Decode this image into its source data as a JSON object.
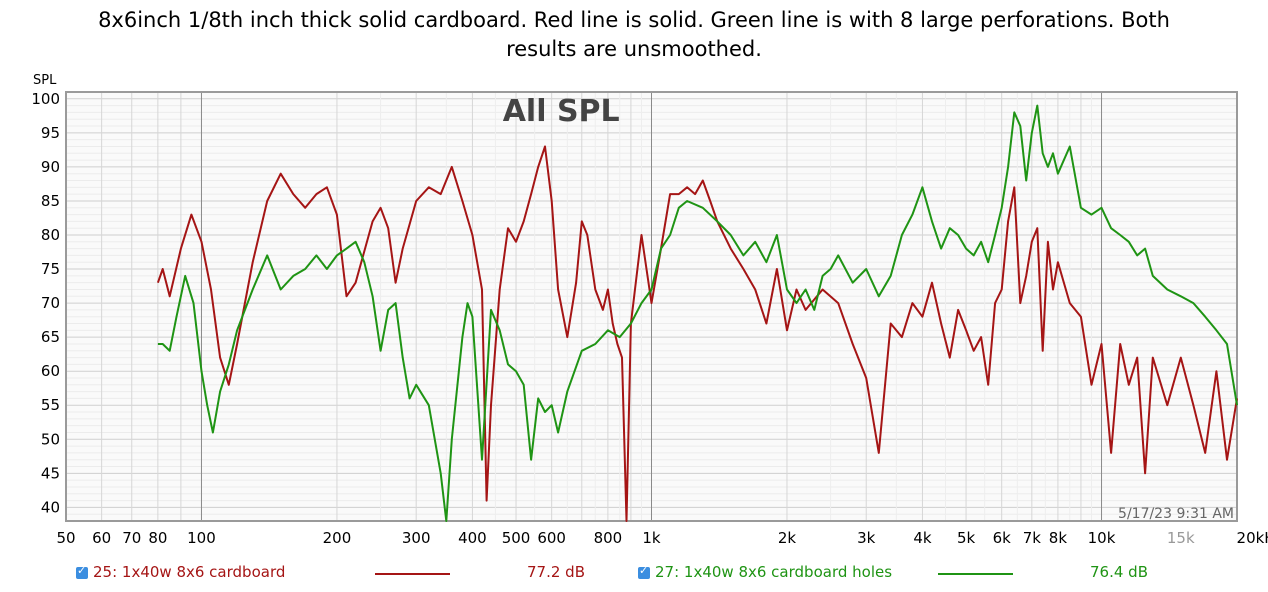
{
  "title_lines": [
    "8x6inch 1/8th inch thick solid cardboard. Red line is solid. Green line is with 8 large perforations. Both",
    "results are unsmoothed."
  ],
  "chart_data": {
    "type": "line",
    "title": "All SPL",
    "ylabel": "SPL",
    "timestamp": "5/17/23 9:31 AM",
    "xscale": "log",
    "xlim": [
      50,
      20000
    ],
    "ylim": [
      38,
      101
    ],
    "grid": true,
    "x_ticks": [
      {
        "v": 50,
        "label": "50"
      },
      {
        "v": 60,
        "label": "60"
      },
      {
        "v": 70,
        "label": "70"
      },
      {
        "v": 80,
        "label": "80"
      },
      {
        "v": 100,
        "label": "100"
      },
      {
        "v": 200,
        "label": "200"
      },
      {
        "v": 300,
        "label": "300"
      },
      {
        "v": 400,
        "label": "400"
      },
      {
        "v": 500,
        "label": "500"
      },
      {
        "v": 600,
        "label": "600"
      },
      {
        "v": 800,
        "label": "800"
      },
      {
        "v": 1000,
        "label": "1k"
      },
      {
        "v": 2000,
        "label": "2k"
      },
      {
        "v": 3000,
        "label": "3k"
      },
      {
        "v": 4000,
        "label": "4k"
      },
      {
        "v": 5000,
        "label": "5k"
      },
      {
        "v": 6000,
        "label": "6k"
      },
      {
        "v": 7000,
        "label": "7k"
      },
      {
        "v": 8000,
        "label": "8k"
      },
      {
        "v": 10000,
        "label": "10k"
      },
      {
        "v": 15000,
        "label": "15k"
      },
      {
        "v": 20000,
        "label": "20kHz"
      }
    ],
    "y_ticks": [
      40,
      45,
      50,
      55,
      60,
      65,
      70,
      75,
      80,
      85,
      90,
      95,
      100
    ],
    "series": [
      {
        "name": "25: 1x40w 8x6 cardboard",
        "color": "#a51515",
        "value_label": "77.2 dB",
        "points": [
          [
            80,
            73
          ],
          [
            82,
            75
          ],
          [
            85,
            71
          ],
          [
            90,
            78
          ],
          [
            95,
            83
          ],
          [
            100,
            79
          ],
          [
            105,
            72
          ],
          [
            110,
            62
          ],
          [
            115,
            58
          ],
          [
            120,
            64
          ],
          [
            130,
            76
          ],
          [
            140,
            85
          ],
          [
            150,
            89
          ],
          [
            160,
            86
          ],
          [
            170,
            84
          ],
          [
            180,
            86
          ],
          [
            190,
            87
          ],
          [
            200,
            83
          ],
          [
            210,
            71
          ],
          [
            220,
            73
          ],
          [
            240,
            82
          ],
          [
            250,
            84
          ],
          [
            260,
            81
          ],
          [
            270,
            73
          ],
          [
            280,
            78
          ],
          [
            300,
            85
          ],
          [
            320,
            87
          ],
          [
            340,
            86
          ],
          [
            360,
            90
          ],
          [
            380,
            85
          ],
          [
            400,
            80
          ],
          [
            420,
            72
          ],
          [
            430,
            41
          ],
          [
            440,
            55
          ],
          [
            460,
            72
          ],
          [
            480,
            81
          ],
          [
            500,
            79
          ],
          [
            520,
            82
          ],
          [
            540,
            86
          ],
          [
            560,
            90
          ],
          [
            580,
            93
          ],
          [
            600,
            85
          ],
          [
            620,
            72
          ],
          [
            650,
            65
          ],
          [
            680,
            73
          ],
          [
            700,
            82
          ],
          [
            720,
            80
          ],
          [
            750,
            72
          ],
          [
            780,
            69
          ],
          [
            800,
            72
          ],
          [
            820,
            67
          ],
          [
            840,
            64
          ],
          [
            860,
            62
          ],
          [
            880,
            38
          ],
          [
            900,
            67
          ],
          [
            950,
            80
          ],
          [
            1000,
            70
          ],
          [
            1050,
            78
          ],
          [
            1100,
            86
          ],
          [
            1150,
            86
          ],
          [
            1200,
            87
          ],
          [
            1250,
            86
          ],
          [
            1300,
            88
          ],
          [
            1350,
            85
          ],
          [
            1400,
            82
          ],
          [
            1500,
            78
          ],
          [
            1600,
            75
          ],
          [
            1700,
            72
          ],
          [
            1800,
            67
          ],
          [
            1900,
            75
          ],
          [
            2000,
            66
          ],
          [
            2100,
            72
          ],
          [
            2200,
            69
          ],
          [
            2400,
            72
          ],
          [
            2600,
            70
          ],
          [
            2800,
            64
          ],
          [
            3000,
            59
          ],
          [
            3200,
            48
          ],
          [
            3400,
            67
          ],
          [
            3600,
            65
          ],
          [
            3800,
            70
          ],
          [
            4000,
            68
          ],
          [
            4200,
            73
          ],
          [
            4400,
            67
          ],
          [
            4600,
            62
          ],
          [
            4800,
            69
          ],
          [
            5000,
            66
          ],
          [
            5200,
            63
          ],
          [
            5400,
            65
          ],
          [
            5600,
            58
          ],
          [
            5800,
            70
          ],
          [
            6000,
            72
          ],
          [
            6200,
            82
          ],
          [
            6400,
            87
          ],
          [
            6600,
            70
          ],
          [
            6800,
            74
          ],
          [
            7000,
            79
          ],
          [
            7200,
            81
          ],
          [
            7400,
            63
          ],
          [
            7600,
            79
          ],
          [
            7800,
            72
          ],
          [
            8000,
            76
          ],
          [
            8500,
            70
          ],
          [
            9000,
            68
          ],
          [
            9500,
            58
          ],
          [
            10000,
            64
          ],
          [
            10500,
            48
          ],
          [
            11000,
            64
          ],
          [
            11500,
            58
          ],
          [
            12000,
            62
          ],
          [
            12500,
            45
          ],
          [
            13000,
            62
          ],
          [
            14000,
            55
          ],
          [
            15000,
            62
          ],
          [
            16000,
            55
          ],
          [
            17000,
            48
          ],
          [
            18000,
            60
          ],
          [
            19000,
            47
          ],
          [
            20000,
            56
          ]
        ]
      },
      {
        "name": "27: 1x40w 8x6  cardboard holes",
        "color": "#1f9414",
        "value_label": "76.4 dB",
        "points": [
          [
            80,
            64
          ],
          [
            82,
            64
          ],
          [
            85,
            63
          ],
          [
            88,
            68
          ],
          [
            92,
            74
          ],
          [
            96,
            70
          ],
          [
            100,
            60
          ],
          [
            103,
            55
          ],
          [
            106,
            51
          ],
          [
            110,
            57
          ],
          [
            115,
            61
          ],
          [
            120,
            66
          ],
          [
            130,
            72
          ],
          [
            140,
            77
          ],
          [
            150,
            72
          ],
          [
            160,
            74
          ],
          [
            170,
            75
          ],
          [
            180,
            77
          ],
          [
            190,
            75
          ],
          [
            200,
            77
          ],
          [
            210,
            78
          ],
          [
            220,
            79
          ],
          [
            230,
            76
          ],
          [
            240,
            71
          ],
          [
            250,
            63
          ],
          [
            260,
            69
          ],
          [
            270,
            70
          ],
          [
            280,
            62
          ],
          [
            290,
            56
          ],
          [
            300,
            58
          ],
          [
            320,
            55
          ],
          [
            340,
            45
          ],
          [
            350,
            38
          ],
          [
            360,
            50
          ],
          [
            380,
            65
          ],
          [
            390,
            70
          ],
          [
            400,
            68
          ],
          [
            420,
            47
          ],
          [
            440,
            69
          ],
          [
            460,
            66
          ],
          [
            480,
            61
          ],
          [
            500,
            60
          ],
          [
            520,
            58
          ],
          [
            540,
            47
          ],
          [
            560,
            56
          ],
          [
            580,
            54
          ],
          [
            600,
            55
          ],
          [
            620,
            51
          ],
          [
            650,
            57
          ],
          [
            700,
            63
          ],
          [
            750,
            64
          ],
          [
            800,
            66
          ],
          [
            850,
            65
          ],
          [
            900,
            67
          ],
          [
            950,
            70
          ],
          [
            1000,
            72
          ],
          [
            1050,
            78
          ],
          [
            1100,
            80
          ],
          [
            1150,
            84
          ],
          [
            1200,
            85
          ],
          [
            1300,
            84
          ],
          [
            1400,
            82
          ],
          [
            1500,
            80
          ],
          [
            1600,
            77
          ],
          [
            1700,
            79
          ],
          [
            1800,
            76
          ],
          [
            1900,
            80
          ],
          [
            2000,
            72
          ],
          [
            2100,
            70
          ],
          [
            2200,
            72
          ],
          [
            2300,
            69
          ],
          [
            2400,
            74
          ],
          [
            2500,
            75
          ],
          [
            2600,
            77
          ],
          [
            2800,
            73
          ],
          [
            3000,
            75
          ],
          [
            3200,
            71
          ],
          [
            3400,
            74
          ],
          [
            3600,
            80
          ],
          [
            3800,
            83
          ],
          [
            4000,
            87
          ],
          [
            4200,
            82
          ],
          [
            4400,
            78
          ],
          [
            4600,
            81
          ],
          [
            4800,
            80
          ],
          [
            5000,
            78
          ],
          [
            5200,
            77
          ],
          [
            5400,
            79
          ],
          [
            5600,
            76
          ],
          [
            5800,
            80
          ],
          [
            6000,
            84
          ],
          [
            6200,
            90
          ],
          [
            6400,
            98
          ],
          [
            6600,
            96
          ],
          [
            6800,
            88
          ],
          [
            7000,
            95
          ],
          [
            7200,
            99
          ],
          [
            7400,
            92
          ],
          [
            7600,
            90
          ],
          [
            7800,
            92
          ],
          [
            8000,
            89
          ],
          [
            8500,
            93
          ],
          [
            9000,
            84
          ],
          [
            9500,
            83
          ],
          [
            10000,
            84
          ],
          [
            10500,
            81
          ],
          [
            11000,
            80
          ],
          [
            11500,
            79
          ],
          [
            12000,
            77
          ],
          [
            12500,
            78
          ],
          [
            13000,
            74
          ],
          [
            14000,
            72
          ],
          [
            15000,
            71
          ],
          [
            16000,
            70
          ],
          [
            17000,
            68
          ],
          [
            18000,
            66
          ],
          [
            19000,
            64
          ],
          [
            20000,
            55
          ]
        ]
      }
    ]
  }
}
